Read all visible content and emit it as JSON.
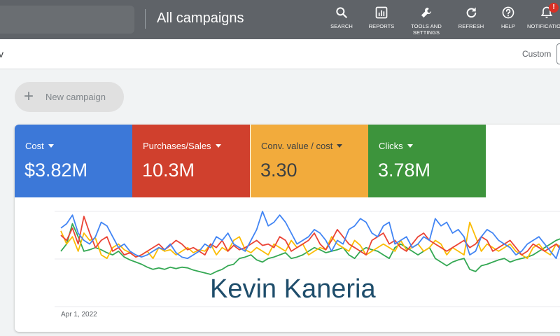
{
  "header": {
    "title": "All campaigns",
    "tools": [
      {
        "label": "SEARCH",
        "icon": "search-icon"
      },
      {
        "label": "REPORTS",
        "icon": "reports-icon"
      },
      {
        "label": "TOOLS AND\nSETTINGS",
        "icon": "wrench-icon"
      },
      {
        "label": "REFRESH",
        "icon": "refresh-icon"
      },
      {
        "label": "HELP",
        "icon": "help-icon"
      },
      {
        "label": "NOTIFICATIONS",
        "icon": "bell-icon",
        "badge": "!"
      }
    ]
  },
  "subbar": {
    "left_text": "v",
    "custom_label": "Custom"
  },
  "new_campaign": {
    "label": "New campaign"
  },
  "metrics": [
    {
      "label": "Cost",
      "value": "$3.82M",
      "color": "#3c78d8",
      "text_color": "#ffffff"
    },
    {
      "label": "Purchases/Sales",
      "value": "10.3M",
      "color": "#d0402d",
      "text_color": "#ffffff"
    },
    {
      "label": "Conv. value / cost",
      "value": "3.30",
      "color": "#f2ab3c",
      "text_color": "#3c4043"
    },
    {
      "label": "Clicks",
      "value": "3.78M",
      "color": "#3d943c",
      "text_color": "#ffffff"
    }
  ],
  "chart_data": {
    "type": "line",
    "x_start_label": "Apr 1, 2022",
    "grid": true,
    "series": [
      {
        "color": "#4285f4",
        "values": [
          52,
          58,
          70,
          45,
          35,
          30,
          40,
          60,
          55,
          40,
          25,
          30,
          20,
          15,
          12,
          15,
          20,
          25,
          22,
          30,
          18,
          12,
          10,
          15,
          20,
          30,
          25,
          40,
          35,
          45,
          30,
          25,
          20,
          35,
          50,
          75,
          55,
          60,
          70,
          60,
          45,
          30,
          35,
          40,
          50,
          45,
          35,
          20,
          35,
          30,
          50,
          55,
          65,
          60,
          45,
          40,
          55,
          60,
          30,
          35,
          40,
          25,
          30,
          40,
          35,
          65,
          55,
          60,
          45,
          50,
          40,
          15,
          20,
          40,
          50,
          45,
          35,
          30,
          25,
          15,
          20,
          30,
          35,
          40,
          30,
          20,
          10,
          35,
          40
        ]
      },
      {
        "color": "#ea4335",
        "values": [
          42,
          35,
          52,
          30,
          68,
          45,
          25,
          35,
          40,
          20,
          25,
          15,
          18,
          12,
          15,
          20,
          25,
          30,
          22,
          28,
          35,
          30,
          22,
          25,
          20,
          15,
          30,
          25,
          35,
          20,
          28,
          22,
          25,
          30,
          35,
          28,
          30,
          25,
          40,
          35,
          20,
          25,
          30,
          35,
          45,
          30,
          22,
          35,
          50,
          40,
          30,
          25,
          20,
          15,
          35,
          40,
          45,
          30,
          35,
          25,
          20,
          30,
          40,
          45,
          35,
          30,
          25,
          20,
          25,
          30,
          35,
          25,
          30,
          40,
          35,
          20,
          25,
          30,
          35,
          25,
          15,
          20,
          30,
          25,
          20,
          25,
          30,
          20,
          25
        ]
      },
      {
        "color": "#fbbc04",
        "values": [
          48,
          30,
          40,
          20,
          45,
          35,
          38,
          15,
          10,
          25,
          30,
          22,
          18,
          12,
          15,
          20,
          10,
          25,
          20,
          22,
          15,
          20,
          25,
          18,
          22,
          20,
          30,
          15,
          25,
          20,
          35,
          40,
          22,
          18,
          25,
          20,
          15,
          30,
          25,
          20,
          35,
          25,
          30,
          15,
          20,
          25,
          22,
          40,
          30,
          25,
          20,
          35,
          28,
          15,
          20,
          25,
          30,
          25,
          20,
          35,
          22,
          25,
          30,
          20,
          25,
          35,
          30,
          15,
          25,
          20,
          15,
          60,
          40,
          20,
          30,
          25,
          20,
          25,
          30,
          20,
          15,
          10,
          25,
          30,
          20,
          15,
          30,
          25,
          30
        ]
      },
      {
        "color": "#34a853",
        "values": [
          20,
          30,
          58,
          40,
          20,
          22,
          25,
          22,
          18,
          15,
          20,
          12,
          8,
          5,
          2,
          -2,
          -5,
          -3,
          -5,
          -2,
          -4,
          -2,
          -3,
          -6,
          -8,
          -10,
          -12,
          -8,
          -5,
          0,
          2,
          10,
          12,
          15,
          8,
          5,
          10,
          12,
          15,
          18,
          10,
          12,
          15,
          20,
          25,
          22,
          18,
          20,
          22,
          25,
          15,
          10,
          20,
          25,
          22,
          20,
          15,
          10,
          25,
          30,
          25,
          20,
          15,
          20,
          25,
          10,
          5,
          0,
          5,
          8,
          10,
          -5,
          -8,
          0,
          2,
          5,
          8,
          10,
          5,
          8,
          10,
          12,
          15,
          20,
          25,
          30,
          35,
          38,
          40
        ]
      }
    ]
  },
  "watermark": "Kevin Kaneria"
}
